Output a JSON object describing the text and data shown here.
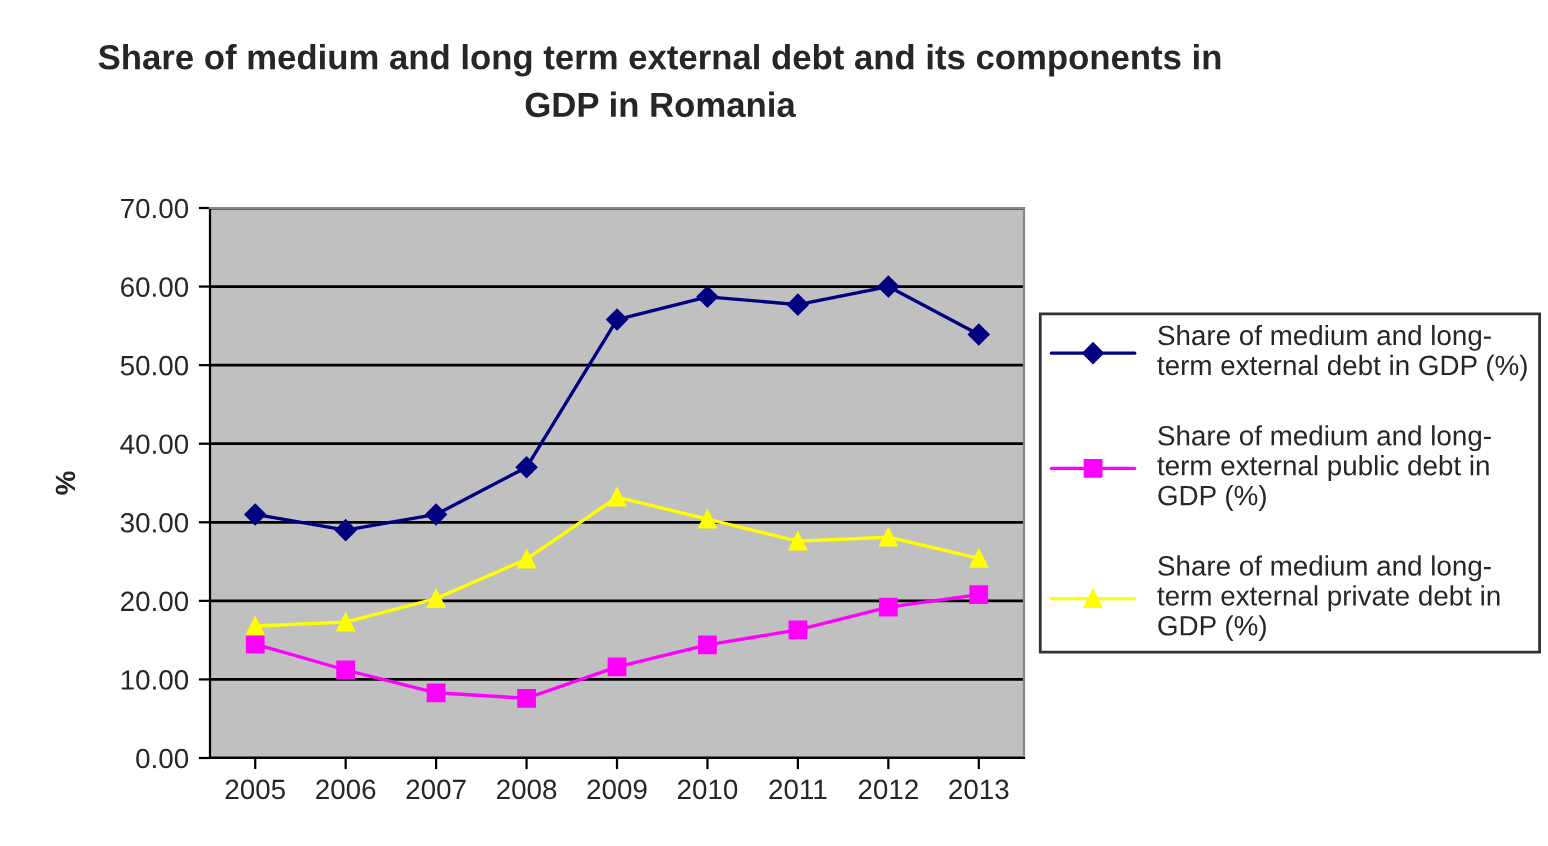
{
  "chart_data": {
    "type": "line",
    "title": "Share of medium and long term external debt and its components in\nGDP in Romania",
    "ylabel": "%",
    "categories": [
      "2005",
      "2006",
      "2007",
      "2008",
      "2009",
      "2010",
      "2011",
      "2012",
      "2013"
    ],
    "series": [
      {
        "name": "Share of medium and long-\nterm external debt in GDP (%)",
        "color": "#000080",
        "marker": "diamond",
        "values": [
          31.0,
          29.0,
          31.0,
          37.0,
          55.8,
          58.7,
          57.7,
          60.0,
          53.9
        ]
      },
      {
        "name": "Share of medium and long-\nterm external public debt in\nGDP (%)",
        "color": "#ff00ff",
        "marker": "square",
        "values": [
          14.5,
          11.2,
          8.3,
          7.6,
          11.6,
          14.4,
          16.3,
          19.2,
          20.8
        ]
      },
      {
        "name": "Share of medium and long-\nterm external private debt in\nGDP (%)",
        "color": "#ffff00",
        "marker": "triangle",
        "values": [
          16.8,
          17.3,
          20.3,
          25.3,
          33.2,
          30.4,
          27.6,
          28.1,
          25.4
        ]
      }
    ],
    "ylim": [
      0,
      70
    ],
    "yticks": [
      {
        "value": 0,
        "label": "0.00"
      },
      {
        "value": 10,
        "label": "10.00"
      },
      {
        "value": 20,
        "label": "20.00"
      },
      {
        "value": 30,
        "label": "30.00"
      },
      {
        "value": 40,
        "label": "40.00"
      },
      {
        "value": 50,
        "label": "50.00"
      },
      {
        "value": 60,
        "label": "60.00"
      },
      {
        "value": 70,
        "label": "70.00"
      }
    ],
    "grid": "y",
    "legend": "right",
    "line_style": "solid"
  }
}
